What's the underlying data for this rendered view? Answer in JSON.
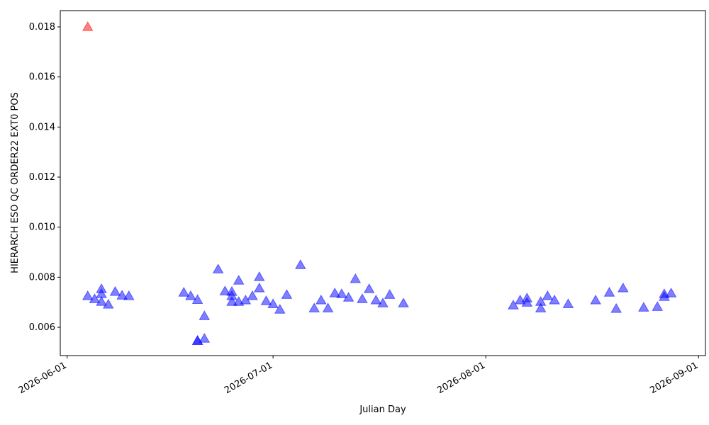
{
  "chart_data": {
    "type": "scatter",
    "xlabel": "Julian Day",
    "ylabel": "HIERARCH ESO QC ORDER22 EXT0 POS",
    "xlim": [
      "2026-05-31",
      "2026-09-02"
    ],
    "xticks": [
      "2026-06-01",
      "2026-07-01",
      "2026-08-01",
      "2026-09-01"
    ],
    "ylim": [
      0.00487,
      0.01865
    ],
    "yticks": [
      0.006,
      0.008,
      {
        "value": 0.01,
        "label": "0.010"
      },
      0.012,
      0.014,
      0.016,
      0.018
    ],
    "marker": "triangle",
    "alpha": 0.5,
    "series": [
      {
        "color": "#ff0000",
        "x": [
          "2026-06-04"
        ],
        "values": [
          0.018
        ]
      },
      {
        "color": "#0000ff",
        "x": [
          "2026-06-04",
          "2026-06-05",
          "2026-06-06",
          "2026-06-06",
          "2026-06-06",
          "2026-06-07",
          "2026-06-08",
          "2026-06-09",
          "2026-06-10",
          "2026-06-18",
          "2026-06-19",
          "2026-06-20",
          "2026-06-21",
          "2026-06-20",
          "2026-06-20",
          "2026-06-21",
          "2026-06-23",
          "2026-06-24",
          "2026-06-25",
          "2026-06-25",
          "2026-06-25",
          "2026-06-26",
          "2026-06-26",
          "2026-06-27",
          "2026-06-28",
          "2026-06-29",
          "2026-06-29",
          "2026-06-30",
          "2026-07-01",
          "2026-07-02",
          "2026-07-03",
          "2026-07-05",
          "2026-07-07",
          "2026-07-08",
          "2026-07-09",
          "2026-07-10",
          "2026-07-11",
          "2026-07-12",
          "2026-07-13",
          "2026-07-14",
          "2026-07-15",
          "2026-07-16",
          "2026-07-17",
          "2026-07-18",
          "2026-07-20",
          "2026-08-05",
          "2026-08-06",
          "2026-08-07",
          "2026-08-07",
          "2026-08-09",
          "2026-08-09",
          "2026-08-10",
          "2026-08-11",
          "2026-08-13",
          "2026-08-17",
          "2026-08-19",
          "2026-08-20",
          "2026-08-21",
          "2026-08-24",
          "2026-08-26",
          "2026-08-27",
          "2026-08-27",
          "2026-08-28"
        ],
        "values": [
          0.00725,
          0.00713,
          0.00753,
          0.00702,
          0.00733,
          0.00691,
          0.00742,
          0.00727,
          0.00725,
          0.00739,
          0.00725,
          0.0071,
          0.00645,
          0.00546,
          0.00546,
          0.00555,
          0.00832,
          0.00744,
          0.00742,
          0.00702,
          0.00725,
          0.00702,
          0.00787,
          0.00708,
          0.00725,
          0.00801,
          0.00756,
          0.00705,
          0.00693,
          0.00671,
          0.0073,
          0.00849,
          0.00676,
          0.00708,
          0.00676,
          0.00736,
          0.00733,
          0.00719,
          0.00793,
          0.00713,
          0.00753,
          0.00708,
          0.00696,
          0.0073,
          0.00696,
          0.00688,
          0.00708,
          0.00716,
          0.00699,
          0.00676,
          0.00702,
          0.00725,
          0.00708,
          0.00693,
          0.00708,
          0.00739,
          0.00674,
          0.00756,
          0.00679,
          0.00682,
          0.00722,
          0.00733,
          0.00736
        ]
      }
    ]
  }
}
